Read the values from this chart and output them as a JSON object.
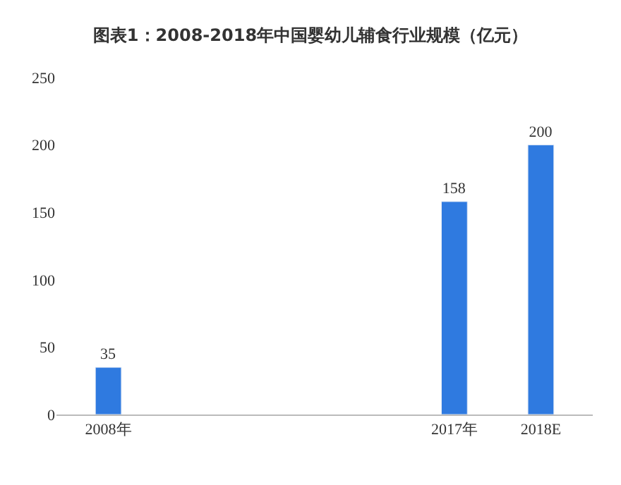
{
  "chart_data": {
    "type": "bar",
    "title": "图表1：2008-2018年中国婴幼儿辅食行业规模（亿元）",
    "categories": [
      "2008年",
      null,
      null,
      null,
      "2017年",
      "2018E"
    ],
    "values": [
      35,
      null,
      null,
      null,
      158,
      200
    ],
    "color": "#2f7ae0",
    "ylim": [
      0,
      250
    ],
    "yticks": [
      0,
      50,
      100,
      150,
      200,
      250
    ],
    "data_labels": true
  }
}
